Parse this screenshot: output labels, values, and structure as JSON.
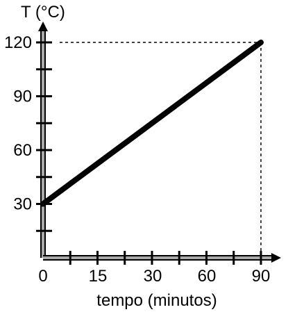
{
  "chart_data": {
    "type": "line",
    "title": "",
    "xlabel": "tempo (minutos)",
    "ylabel": "T (°C)",
    "x_ticks": [
      {
        "value": 0,
        "label": "0"
      },
      {
        "value": 15,
        "label": "15"
      },
      {
        "value": 30,
        "label": "30"
      },
      {
        "value": 60,
        "label": "60"
      },
      {
        "value": 90,
        "label": "90"
      }
    ],
    "y_ticks": [
      {
        "value": 30,
        "label": "30"
      },
      {
        "value": 60,
        "label": "60"
      },
      {
        "value": 90,
        "label": "90"
      },
      {
        "value": 120,
        "label": "120"
      }
    ],
    "series": [
      {
        "points": [
          {
            "x": 0,
            "y": 30
          },
          {
            "x": 90,
            "y": 120
          }
        ]
      }
    ],
    "grid": false,
    "legend": "none",
    "guides": [
      {
        "axis": "y",
        "value": 120
      },
      {
        "axis": "x",
        "value": 90
      }
    ]
  }
}
